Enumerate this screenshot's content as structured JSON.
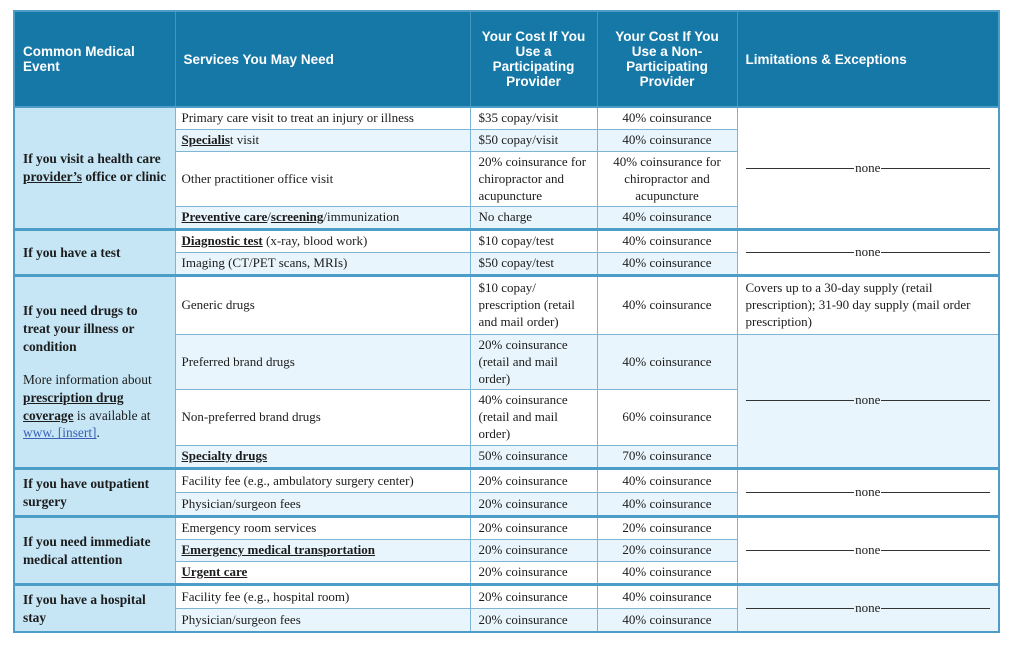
{
  "colors": {
    "header_bg": "#1578A7",
    "event_column_bg": "#C6E6F6",
    "stripe_row_bg": "#E9F5FC",
    "table_border": "#4D9DC9",
    "link": "#3A5FB5",
    "header_text": "#FFFFFF"
  },
  "table": {
    "none_label": "none",
    "columns": [
      {
        "label": "Common Medical Event"
      },
      {
        "label": "Services You May Need"
      },
      {
        "label": "Your Cost If You Use a Participating Provider"
      },
      {
        "label": "Your Cost If You Use a Non-Participating Provider"
      },
      {
        "label": "Limitations & Exceptions"
      }
    ],
    "sections": [
      {
        "event": [
          {
            "bold": true,
            "runs": [
              {
                "t": "If you visit a health care ",
                "b": true
              },
              {
                "t": "provider’s",
                "b": true,
                "u": true
              },
              {
                "t": " office or clinic",
                "b": true
              }
            ]
          }
        ],
        "rows": [
          {
            "service": [
              {
                "t": "Primary care visit to treat an injury or illness"
              }
            ],
            "pp": "$35 copay/visit",
            "npp": "40% coinsurance"
          },
          {
            "service": [
              {
                "t": "Specialis",
                "b": true,
                "u": true
              },
              {
                "t": "t visit"
              }
            ],
            "pp": "$50 copay/visit",
            "npp": "40% coinsurance"
          },
          {
            "service": [
              {
                "t": "Other practitioner office visit"
              }
            ],
            "pp": "20% coinsurance for chiropractor and acupuncture",
            "npp": "40% coinsurance for chiropractor and acupuncture"
          },
          {
            "service": [
              {
                "t": "Preventive care",
                "b": true,
                "u": true
              },
              {
                "t": "/"
              },
              {
                "t": "screening",
                "b": true,
                "u": true
              },
              {
                "t": "/immunization"
              }
            ],
            "pp": "No charge",
            "npp": "40% coinsurance"
          }
        ],
        "limitations": [
          {
            "none": true,
            "span": 4
          }
        ]
      },
      {
        "event": [
          {
            "bold": true,
            "runs": [
              {
                "t": "If you have a test",
                "b": true
              }
            ]
          }
        ],
        "rows": [
          {
            "service": [
              {
                "t": "Diagnostic test",
                "b": true,
                "u": true
              },
              {
                "t": " (x-ray, blood work)"
              }
            ],
            "pp": "$10 copay/test",
            "npp": "40% coinsurance"
          },
          {
            "service": [
              {
                "t": "Imaging (CT/PET scans, MRIs)"
              }
            ],
            "pp": "$50 copay/test",
            "npp": "40% coinsurance"
          }
        ],
        "limitations": [
          {
            "none": true,
            "span": 2
          }
        ]
      },
      {
        "event": [
          {
            "bold": true,
            "runs": [
              {
                "t": "If you need drugs to treat your illness or condition",
                "b": true
              }
            ]
          },
          {
            "runs": [
              {
                "t": "More information about "
              },
              {
                "t": "prescription drug coverage",
                "b": true,
                "u": true
              },
              {
                "t": " is available at "
              },
              {
                "t": "www. [insert]",
                "link": true
              },
              {
                "t": "."
              }
            ]
          }
        ],
        "rows": [
          {
            "service": [
              {
                "t": "Generic drugs"
              }
            ],
            "pp": "$10 copay/ prescription (retail and mail order)",
            "npp": "40% coinsurance"
          },
          {
            "service": [
              {
                "t": "Preferred brand drugs"
              }
            ],
            "pp": "20% coinsurance (retail and mail order)",
            "npp": "40% coinsurance"
          },
          {
            "service": [
              {
                "t": "Non-preferred brand drugs"
              }
            ],
            "pp": "40% coinsurance (retail and mail order)",
            "npp": "60% coinsurance"
          },
          {
            "service": [
              {
                "t": "Specialty drugs",
                "b": true,
                "u": true
              }
            ],
            "pp": "50% coinsurance",
            "npp": "70% coinsurance"
          }
        ],
        "limitations": [
          {
            "text": "Covers up to a 30-day supply (retail prescription); 31-90 day supply (mail order prescription)",
            "span": 1
          },
          {
            "none": true,
            "span": 3,
            "shaded": true
          }
        ]
      },
      {
        "event": [
          {
            "bold": true,
            "runs": [
              {
                "t": "If you have outpatient surgery",
                "b": true
              }
            ]
          }
        ],
        "rows": [
          {
            "service": [
              {
                "t": "Facility fee (e.g., ambulatory surgery center)"
              }
            ],
            "pp": "20% coinsurance",
            "npp": "40% coinsurance"
          },
          {
            "service": [
              {
                "t": "Physician/surgeon fees"
              }
            ],
            "pp": "20% coinsurance",
            "npp": "40% coinsurance"
          }
        ],
        "limitations": [
          {
            "none": true,
            "span": 2
          }
        ]
      },
      {
        "event": [
          {
            "bold": true,
            "runs": [
              {
                "t": "If you need immediate medical attention",
                "b": true
              }
            ]
          }
        ],
        "rows": [
          {
            "service": [
              {
                "t": "Emergency room services"
              }
            ],
            "pp": "20% coinsurance",
            "npp": "20% coinsurance"
          },
          {
            "service": [
              {
                "t": "Emergency medical transportation",
                "b": true,
                "u": true
              }
            ],
            "pp": "20% coinsurance",
            "npp": "20% coinsurance"
          },
          {
            "service": [
              {
                "t": "Urgent care",
                "b": true,
                "u": true
              }
            ],
            "pp": "20% coinsurance",
            "npp": "40% coinsurance"
          }
        ],
        "limitations": [
          {
            "none": true,
            "span": 3
          }
        ]
      },
      {
        "event": [
          {
            "bold": true,
            "runs": [
              {
                "t": "If you have a hospital stay",
                "b": true
              }
            ]
          }
        ],
        "rows": [
          {
            "service": [
              {
                "t": "Facility fee (e.g., hospital room)"
              }
            ],
            "pp": "20% coinsurance",
            "npp": "40% coinsurance"
          },
          {
            "service": [
              {
                "t": "Physician/surgeon fees"
              }
            ],
            "pp": "20% coinsurance",
            "npp": "40% coinsurance"
          }
        ],
        "limitations": [
          {
            "none": true,
            "span": 2,
            "shaded": true
          }
        ]
      }
    ]
  }
}
